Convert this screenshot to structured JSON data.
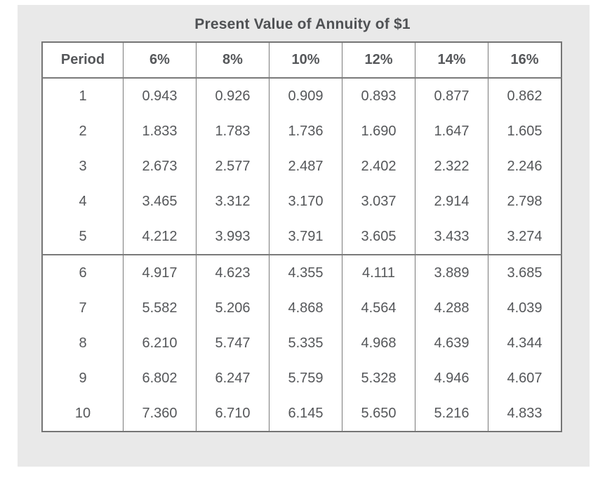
{
  "title": "Present Value of Annuity of $1",
  "colors": {
    "page_bg": "#ffffff",
    "panel_bg": "#e9e9e9",
    "table_bg": "#ffffff",
    "border": "#7a7a7a",
    "text": "#55575a",
    "title_text": "#4f5154"
  },
  "chart_data": {
    "type": "table",
    "title": "Present Value of Annuity of $1",
    "columns": [
      "Period",
      "6%",
      "8%",
      "10%",
      "12%",
      "14%",
      "16%"
    ],
    "rows": [
      {
        "period": "1",
        "group": 1,
        "values": [
          "0.943",
          "0.926",
          "0.909",
          "0.893",
          "0.877",
          "0.862"
        ]
      },
      {
        "period": "2",
        "group": 1,
        "values": [
          "1.833",
          "1.783",
          "1.736",
          "1.690",
          "1.647",
          "1.605"
        ]
      },
      {
        "period": "3",
        "group": 1,
        "values": [
          "2.673",
          "2.577",
          "2.487",
          "2.402",
          "2.322",
          "2.246"
        ]
      },
      {
        "period": "4",
        "group": 1,
        "values": [
          "3.465",
          "3.312",
          "3.170",
          "3.037",
          "2.914",
          "2.798"
        ]
      },
      {
        "period": "5",
        "group": 1,
        "values": [
          "4.212",
          "3.993",
          "3.791",
          "3.605",
          "3.433",
          "3.274"
        ]
      },
      {
        "period": "6",
        "group": 2,
        "values": [
          "4.917",
          "4.623",
          "4.355",
          "4.111",
          "3.889",
          "3.685"
        ]
      },
      {
        "period": "7",
        "group": 2,
        "values": [
          "5.582",
          "5.206",
          "4.868",
          "4.564",
          "4.288",
          "4.039"
        ]
      },
      {
        "period": "8",
        "group": 2,
        "values": [
          "6.210",
          "5.747",
          "5.335",
          "4.968",
          "4.639",
          "4.344"
        ]
      },
      {
        "period": "9",
        "group": 2,
        "values": [
          "6.802",
          "6.247",
          "5.759",
          "5.328",
          "4.946",
          "4.607"
        ]
      },
      {
        "period": "10",
        "group": 2,
        "values": [
          "7.360",
          "6.710",
          "6.145",
          "5.650",
          "5.216",
          "4.833"
        ]
      }
    ],
    "layout": {
      "legend": "none",
      "row_group_divider_after_period": "5",
      "grid": "vertical-only"
    }
  }
}
